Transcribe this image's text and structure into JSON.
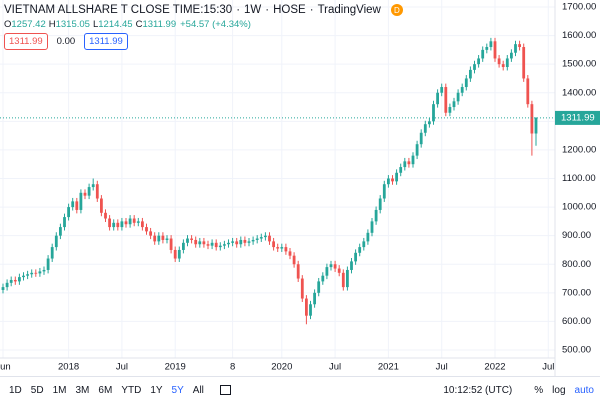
{
  "chart_data": {
    "type": "candlestick",
    "header": {
      "symbol": "VIETNAM ALLSHARE T CLOSE TIME:15:30",
      "interval": "1W",
      "exchange": "HOSE",
      "source": "TradingView",
      "badge": "D",
      "ohlc_labels": [
        "O",
        "H",
        "L",
        "C"
      ],
      "change": "+54.57 (+4.34%)",
      "spread": "0.00"
    },
    "up_color": "#26a69a",
    "down_color": "#ef5350",
    "categories": [
      "Jun",
      null,
      null,
      null,
      null,
      null,
      null,
      null,
      null,
      null,
      null,
      null,
      null,
      null,
      null,
      null,
      "2018",
      null,
      null,
      null,
      null,
      null,
      null,
      null,
      null,
      null,
      null,
      null,
      null,
      "Jul",
      null,
      null,
      null,
      null,
      null,
      null,
      null,
      null,
      null,
      null,
      null,
      null,
      "2019",
      null,
      null,
      null,
      null,
      null,
      null,
      null,
      null,
      null,
      null,
      null,
      null,
      null,
      "8",
      null,
      null,
      null,
      null,
      null,
      null,
      null,
      null,
      null,
      null,
      null,
      "2020",
      null,
      null,
      null,
      null,
      null,
      null,
      null,
      null,
      null,
      null,
      null,
      null,
      "Jul",
      null,
      null,
      null,
      null,
      null,
      null,
      null,
      null,
      null,
      null,
      null,
      null,
      "2021",
      null,
      null,
      null,
      null,
      null,
      null,
      null,
      null,
      null,
      null,
      null,
      null,
      "Jul",
      null,
      null,
      null,
      null,
      null,
      null,
      null,
      null,
      null,
      null,
      null,
      null,
      "2022",
      null,
      null,
      null,
      null,
      null,
      null,
      null,
      null,
      null,
      null,
      null,
      null,
      "Jul"
    ],
    "values": [
      [
        710,
        732,
        698,
        720
      ],
      [
        720,
        747,
        708,
        735
      ],
      [
        735,
        757,
        723,
        745
      ],
      [
        745,
        757,
        728,
        740
      ],
      [
        740,
        767,
        728,
        755
      ],
      [
        755,
        772,
        743,
        760
      ],
      [
        760,
        777,
        748,
        765
      ],
      [
        765,
        782,
        753,
        770
      ],
      [
        770,
        782,
        756,
        768
      ],
      [
        768,
        787,
        756,
        775
      ],
      [
        775,
        792,
        763,
        780
      ],
      [
        780,
        832,
        768,
        820
      ],
      [
        820,
        872,
        808,
        860
      ],
      [
        860,
        912,
        848,
        900
      ],
      [
        900,
        942,
        888,
        930
      ],
      [
        930,
        977,
        918,
        965
      ],
      [
        965,
        1012,
        953,
        1000
      ],
      [
        1000,
        1032,
        988,
        1020
      ],
      [
        1020,
        1032,
        978,
        990
      ],
      [
        990,
        1062,
        978,
        1050
      ],
      [
        1050,
        1062,
        1028,
        1040
      ],
      [
        1040,
        1082,
        1028,
        1070
      ],
      [
        1070,
        1100,
        1058,
        1080
      ],
      [
        1080,
        1092,
        1018,
        1030
      ],
      [
        1030,
        1042,
        968,
        980
      ],
      [
        980,
        992,
        948,
        960
      ],
      [
        960,
        972,
        918,
        930
      ],
      [
        930,
        957,
        918,
        945
      ],
      [
        945,
        957,
        918,
        930
      ],
      [
        930,
        962,
        918,
        950
      ],
      [
        950,
        962,
        928,
        940
      ],
      [
        940,
        972,
        928,
        960
      ],
      [
        960,
        972,
        933,
        945
      ],
      [
        945,
        962,
        933,
        950
      ],
      [
        950,
        962,
        918,
        930
      ],
      [
        930,
        942,
        903,
        915
      ],
      [
        915,
        927,
        888,
        900
      ],
      [
        900,
        912,
        868,
        880
      ],
      [
        880,
        912,
        868,
        900
      ],
      [
        900,
        912,
        873,
        885
      ],
      [
        885,
        902,
        873,
        890
      ],
      [
        890,
        902,
        838,
        850
      ],
      [
        850,
        862,
        808,
        820
      ],
      [
        820,
        862,
        808,
        850
      ],
      [
        850,
        887,
        838,
        875
      ],
      [
        875,
        902,
        863,
        890
      ],
      [
        890,
        902,
        873,
        885
      ],
      [
        885,
        897,
        858,
        870
      ],
      [
        870,
        892,
        858,
        880
      ],
      [
        880,
        892,
        858,
        870
      ],
      [
        870,
        882,
        853,
        865
      ],
      [
        865,
        887,
        853,
        875
      ],
      [
        875,
        887,
        848,
        860
      ],
      [
        860,
        877,
        848,
        865
      ],
      [
        865,
        882,
        853,
        870
      ],
      [
        870,
        887,
        858,
        875
      ],
      [
        875,
        892,
        863,
        880
      ],
      [
        880,
        892,
        858,
        870
      ],
      [
        870,
        897,
        858,
        885
      ],
      [
        885,
        897,
        863,
        875
      ],
      [
        875,
        892,
        863,
        880
      ],
      [
        880,
        897,
        868,
        885
      ],
      [
        885,
        902,
        873,
        890
      ],
      [
        890,
        907,
        878,
        895
      ],
      [
        895,
        912,
        883,
        900
      ],
      [
        900,
        912,
        868,
        880
      ],
      [
        880,
        892,
        848,
        860
      ],
      [
        860,
        872,
        843,
        855
      ],
      [
        855,
        872,
        843,
        860
      ],
      [
        860,
        872,
        833,
        845
      ],
      [
        845,
        857,
        818,
        830
      ],
      [
        830,
        842,
        788,
        800
      ],
      [
        800,
        812,
        738,
        750
      ],
      [
        750,
        762,
        668,
        680
      ],
      [
        680,
        692,
        590,
        620
      ],
      [
        620,
        672,
        608,
        660
      ],
      [
        660,
        712,
        648,
        700
      ],
      [
        700,
        752,
        688,
        740
      ],
      [
        740,
        772,
        728,
        760
      ],
      [
        760,
        802,
        748,
        790
      ],
      [
        790,
        812,
        778,
        800
      ],
      [
        800,
        812,
        773,
        785
      ],
      [
        785,
        797,
        758,
        770
      ],
      [
        770,
        782,
        708,
        720
      ],
      [
        720,
        792,
        708,
        780
      ],
      [
        780,
        822,
        768,
        810
      ],
      [
        810,
        852,
        798,
        840
      ],
      [
        840,
        872,
        828,
        860
      ],
      [
        860,
        892,
        848,
        880
      ],
      [
        880,
        922,
        868,
        910
      ],
      [
        910,
        962,
        898,
        950
      ],
      [
        950,
        1002,
        938,
        990
      ],
      [
        990,
        1042,
        978,
        1030
      ],
      [
        1030,
        1092,
        1018,
        1080
      ],
      [
        1080,
        1112,
        1068,
        1100
      ],
      [
        1100,
        1112,
        1078,
        1090
      ],
      [
        1090,
        1132,
        1078,
        1120
      ],
      [
        1120,
        1152,
        1108,
        1140
      ],
      [
        1140,
        1172,
        1128,
        1160
      ],
      [
        1160,
        1172,
        1138,
        1150
      ],
      [
        1150,
        1192,
        1138,
        1180
      ],
      [
        1180,
        1232,
        1168,
        1220
      ],
      [
        1220,
        1272,
        1208,
        1260
      ],
      [
        1260,
        1302,
        1248,
        1290
      ],
      [
        1290,
        1312,
        1278,
        1300
      ],
      [
        1300,
        1372,
        1288,
        1360
      ],
      [
        1360,
        1412,
        1348,
        1400
      ],
      [
        1400,
        1432,
        1388,
        1420
      ],
      [
        1420,
        1432,
        1318,
        1330
      ],
      [
        1330,
        1362,
        1318,
        1350
      ],
      [
        1350,
        1382,
        1338,
        1370
      ],
      [
        1370,
        1412,
        1358,
        1400
      ],
      [
        1400,
        1432,
        1388,
        1420
      ],
      [
        1420,
        1462,
        1408,
        1450
      ],
      [
        1450,
        1492,
        1438,
        1480
      ],
      [
        1480,
        1512,
        1468,
        1500
      ],
      [
        1500,
        1532,
        1488,
        1520
      ],
      [
        1520,
        1562,
        1508,
        1550
      ],
      [
        1550,
        1572,
        1538,
        1560
      ],
      [
        1560,
        1592,
        1548,
        1580
      ],
      [
        1580,
        1592,
        1508,
        1520
      ],
      [
        1520,
        1532,
        1488,
        1500
      ],
      [
        1500,
        1512,
        1478,
        1490
      ],
      [
        1490,
        1532,
        1478,
        1520
      ],
      [
        1520,
        1552,
        1508,
        1540
      ],
      [
        1540,
        1582,
        1528,
        1570
      ],
      [
        1570,
        1582,
        1548,
        1560
      ],
      [
        1560,
        1572,
        1438,
        1450
      ],
      [
        1450,
        1462,
        1348,
        1360
      ],
      [
        1360,
        1372,
        1180,
        1257.42
      ],
      [
        1257.42,
        1315.05,
        1214.45,
        1311.99
      ],
      null,
      null,
      null
    ],
    "ylim": [
      500,
      1700
    ],
    "yticks": [
      {
        "value": 500,
        "label": "500.00"
      },
      {
        "value": 600,
        "label": "600.00"
      },
      {
        "value": 700,
        "label": "700.00"
      },
      {
        "value": 800,
        "label": "800.00"
      },
      {
        "value": 900,
        "label": "900.00"
      },
      {
        "value": 1000,
        "label": "1000.00"
      },
      {
        "value": 1100,
        "label": "1100.00"
      },
      {
        "value": 1200,
        "label": "1200.00"
      },
      {
        "value": 1300,
        "label": "1300.00"
      },
      {
        "value": 1400,
        "label": "1400.00"
      },
      {
        "value": 1500,
        "label": "1500.00"
      },
      {
        "value": 1600,
        "label": "1600.00"
      },
      {
        "value": 1700,
        "label": "1700.00"
      }
    ],
    "grid": true
  },
  "toolbar": {
    "ranges": [
      "1D",
      "5D",
      "1M",
      "3M",
      "6M",
      "YTD",
      "1Y",
      "5Y",
      "All"
    ],
    "active_index": 7,
    "time": "10:12:52 (UTC)",
    "options": [
      "%",
      "log",
      "auto"
    ]
  }
}
